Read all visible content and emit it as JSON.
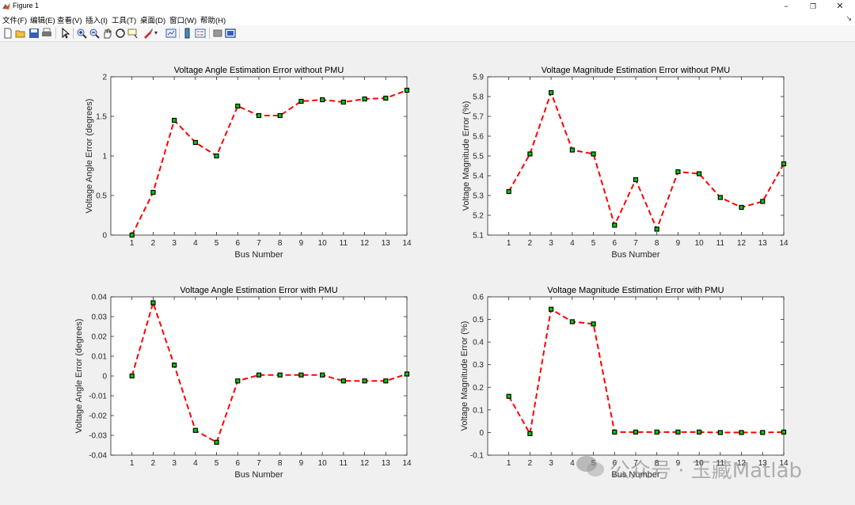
{
  "window": {
    "title": "Figure 1"
  },
  "menu": [
    "文件(F)",
    "编辑(E)",
    "查看(V)",
    "插入(I)",
    "工具(T)",
    "桌面(D)",
    "窗口(W)",
    "帮助(H)"
  ],
  "toolbar_icons": [
    "new-figure-icon",
    "open-file-icon",
    "save-icon",
    "print-icon",
    "pointer-icon",
    "zoom-in-icon",
    "zoom-out-icon",
    "pan-icon",
    "rotate-3d-icon",
    "data-cursor-icon",
    "brush-icon",
    "link-plot-icon",
    "colorbar-icon",
    "legend-icon",
    "hide-plot-tools-icon",
    "show-plot-tools-icon"
  ],
  "colors": {
    "line": "#ff0000",
    "marker_fill": "#00cc00",
    "marker_edge": "#000000",
    "axes_bg": "#ffffff"
  },
  "watermark": "公众号 · 玉藏Matlab",
  "chart_data": [
    {
      "type": "line",
      "title": "Voltage Angle Estimation Error without PMU",
      "xlabel": "Bus Number",
      "ylabel": "Voltage Angle Error (degrees)",
      "x": [
        1,
        2,
        3,
        4,
        5,
        6,
        7,
        8,
        9,
        10,
        11,
        12,
        13,
        14
      ],
      "values": [
        0,
        0.54,
        1.45,
        1.17,
        1.0,
        1.63,
        1.51,
        1.51,
        1.69,
        1.71,
        1.68,
        1.72,
        1.73,
        1.83
      ],
      "xlim": [
        0,
        14
      ],
      "ylim": [
        0,
        2
      ],
      "xticks": [
        "1",
        "2",
        "3",
        "4",
        "5",
        "6",
        "7",
        "8",
        "9",
        "10",
        "11",
        "12",
        "13",
        "14"
      ],
      "yticks": [
        "0",
        "0.5",
        "1",
        "1.5",
        "2"
      ],
      "line_style": "dashed",
      "marker": "square"
    },
    {
      "type": "line",
      "title": "Voltage Magnitude Estimation Error without PMU",
      "xlabel": "Bus Number",
      "ylabel": "Voltage Magnitude Error (%)",
      "x": [
        1,
        2,
        3,
        4,
        5,
        6,
        7,
        8,
        9,
        10,
        11,
        12,
        13,
        14
      ],
      "values": [
        5.32,
        5.51,
        5.82,
        5.53,
        5.51,
        5.15,
        5.38,
        5.13,
        5.42,
        5.41,
        5.29,
        5.24,
        5.27,
        5.46
      ],
      "xlim": [
        0,
        14
      ],
      "ylim": [
        5.1,
        5.9
      ],
      "xticks": [
        "1",
        "2",
        "3",
        "4",
        "5",
        "6",
        "7",
        "8",
        "9",
        "10",
        "11",
        "12",
        "13",
        "14"
      ],
      "yticks": [
        "5.1",
        "5.2",
        "5.3",
        "5.4",
        "5.5",
        "5.6",
        "5.7",
        "5.8",
        "5.9"
      ],
      "line_style": "dashed",
      "marker": "square"
    },
    {
      "type": "line",
      "title": "Voltage Angle Estimation Error with PMU",
      "xlabel": "Bus Number",
      "ylabel": "Voltage Angle Error (degrees)",
      "x": [
        1,
        2,
        3,
        4,
        5,
        6,
        7,
        8,
        9,
        10,
        11,
        12,
        13,
        14
      ],
      "values": [
        0,
        0.037,
        0.0055,
        -0.0275,
        -0.0335,
        -0.0025,
        0.0005,
        0.0005,
        0.0005,
        0.0005,
        -0.0025,
        -0.0025,
        -0.0025,
        0.001
      ],
      "xlim": [
        0,
        14
      ],
      "ylim": [
        -0.04,
        0.04
      ],
      "xticks": [
        "1",
        "2",
        "3",
        "4",
        "5",
        "6",
        "7",
        "8",
        "9",
        "10",
        "11",
        "12",
        "13",
        "14"
      ],
      "yticks": [
        "-0.04",
        "-0.03",
        "-0.02",
        "-0.01",
        "0",
        "0.01",
        "0.02",
        "0.03",
        "0.04"
      ],
      "line_style": "dashed",
      "marker": "square"
    },
    {
      "type": "line",
      "title": "Voltage Magnitude Estimation Error with PMU",
      "xlabel": "Bus Number",
      "ylabel": "Voltage Magnitude Error (%)",
      "x": [
        1,
        2,
        3,
        4,
        5,
        6,
        7,
        8,
        9,
        10,
        11,
        12,
        13,
        14
      ],
      "values": [
        0.16,
        -0.005,
        0.545,
        0.49,
        0.48,
        0.002,
        0.002,
        0.002,
        0.002,
        0.002,
        0.0,
        0.0,
        0.0,
        0.002
      ],
      "xlim": [
        0,
        14
      ],
      "ylim": [
        -0.1,
        0.6
      ],
      "xticks": [
        "1",
        "2",
        "3",
        "4",
        "5",
        "6",
        "7",
        "8",
        "9",
        "10",
        "11",
        "12",
        "13",
        "14"
      ],
      "yticks": [
        "-0.1",
        "0",
        "0.1",
        "0.2",
        "0.3",
        "0.4",
        "0.5",
        "0.6"
      ],
      "line_style": "dashed",
      "marker": "square"
    }
  ]
}
